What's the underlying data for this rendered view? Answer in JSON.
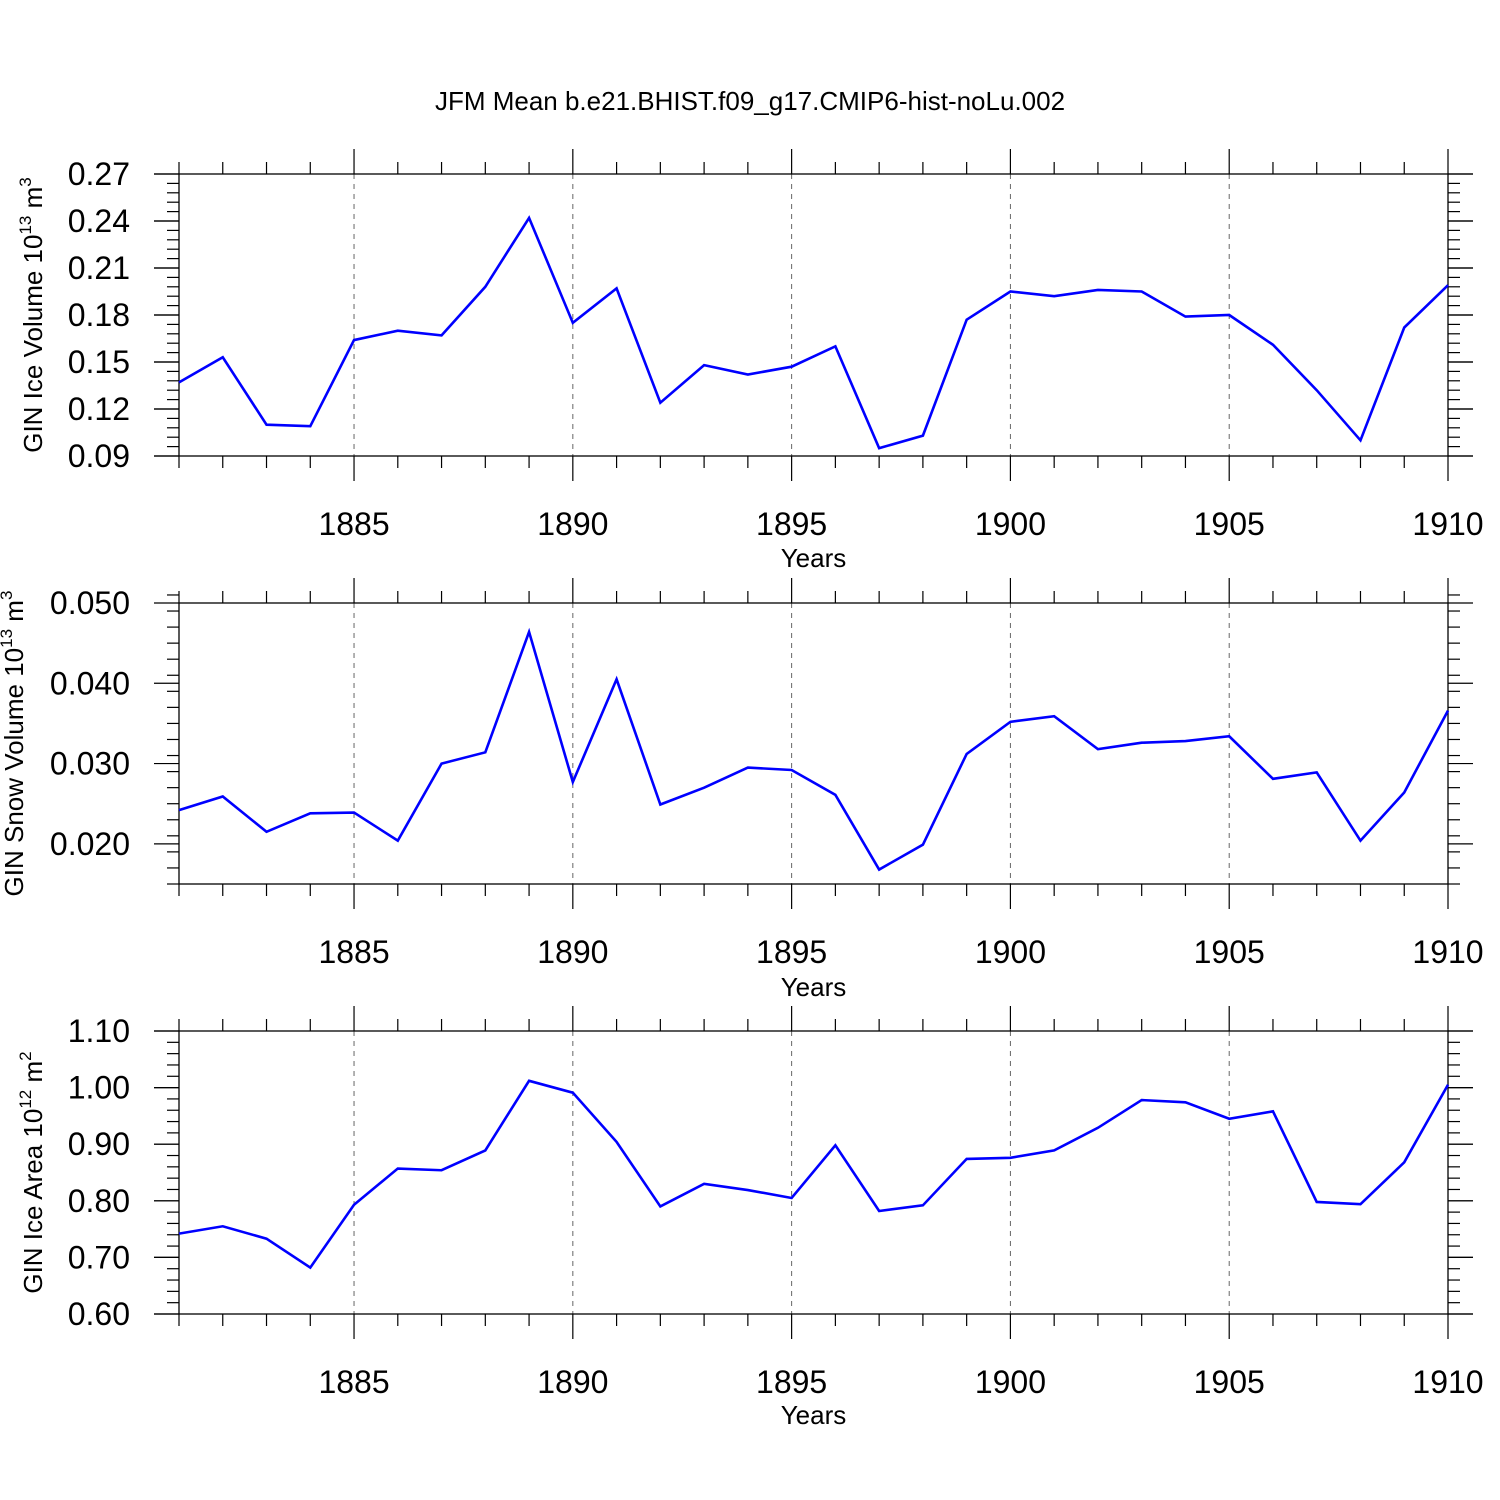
{
  "figure_title": "JFM Mean b.e21.BHIST.f09_g17.CMIP6-hist-noLu.002",
  "chart_data": [
    {
      "type": "line",
      "ylabel_base": "GIN Ice Volume 10",
      "ylabel_exp": "13",
      "ylabel_unit": "m",
      "ylabel_unit_exp": "3",
      "xlabel": "Years",
      "xlim": [
        1881,
        1910
      ],
      "ylim": [
        0.09,
        0.27
      ],
      "yticks": [
        0.09,
        0.12,
        0.15,
        0.18,
        0.21,
        0.24,
        0.27
      ],
      "ytick_labels": [
        "0.09",
        "0.12",
        "0.15",
        "0.18",
        "0.21",
        "0.24",
        "0.27"
      ],
      "y_minor_step": 0.006,
      "xticks": [
        1885,
        1890,
        1895,
        1900,
        1905,
        1910
      ],
      "xtick_labels": [
        "1885",
        "1890",
        "1895",
        "1900",
        "1905",
        "1910"
      ],
      "grid": "vertical-dashed",
      "series": [
        {
          "name": "GIN Ice Volume",
          "color": "#0000ff",
          "x": [
            1881,
            1882,
            1883,
            1884,
            1885,
            1886,
            1887,
            1888,
            1889,
            1890,
            1891,
            1892,
            1893,
            1894,
            1895,
            1896,
            1897,
            1898,
            1899,
            1900,
            1901,
            1902,
            1903,
            1904,
            1905,
            1906,
            1907,
            1908,
            1909,
            1910
          ],
          "values": [
            0.137,
            0.153,
            0.11,
            0.109,
            0.164,
            0.17,
            0.167,
            0.198,
            0.242,
            0.175,
            0.197,
            0.124,
            0.148,
            0.142,
            0.147,
            0.16,
            0.095,
            0.103,
            0.177,
            0.195,
            0.192,
            0.196,
            0.195,
            0.179,
            0.18,
            0.161,
            0.132,
            0.1,
            0.172,
            0.199
          ]
        }
      ]
    },
    {
      "type": "line",
      "ylabel_base": "GIN Snow Volume 10",
      "ylabel_exp": "13",
      "ylabel_unit": "m",
      "ylabel_unit_exp": "3",
      "xlabel": "Years",
      "xlim": [
        1881,
        1910
      ],
      "ylim": [
        0.015,
        0.05
      ],
      "yticks": [
        0.02,
        0.03,
        0.04,
        0.05
      ],
      "ytick_labels": [
        "0.020",
        "0.030",
        "0.040",
        "0.050"
      ],
      "y_minor_step": 0.002,
      "xticks": [
        1885,
        1890,
        1895,
        1900,
        1905,
        1910
      ],
      "xtick_labels": [
        "1885",
        "1890",
        "1895",
        "1900",
        "1905",
        "1910"
      ],
      "grid": "vertical-dashed",
      "series": [
        {
          "name": "GIN Snow Volume",
          "color": "#0000ff",
          "x": [
            1881,
            1882,
            1883,
            1884,
            1885,
            1886,
            1887,
            1888,
            1889,
            1890,
            1891,
            1892,
            1893,
            1894,
            1895,
            1896,
            1897,
            1898,
            1899,
            1900,
            1901,
            1902,
            1903,
            1904,
            1905,
            1906,
            1907,
            1908,
            1909,
            1910
          ],
          "values": [
            0.0242,
            0.0259,
            0.0215,
            0.0238,
            0.0239,
            0.0204,
            0.03,
            0.0314,
            0.0464,
            0.0277,
            0.0405,
            0.0249,
            0.027,
            0.0295,
            0.0292,
            0.0261,
            0.0168,
            0.0199,
            0.0312,
            0.0352,
            0.0359,
            0.0318,
            0.0326,
            0.0328,
            0.0334,
            0.0281,
            0.0289,
            0.0204,
            0.0264,
            0.0366
          ]
        }
      ]
    },
    {
      "type": "line",
      "ylabel_base": "GIN Ice Area 10",
      "ylabel_exp": "12",
      "ylabel_unit": "m",
      "ylabel_unit_exp": "2",
      "xlabel": "Years",
      "xlim": [
        1881,
        1910
      ],
      "ylim": [
        0.6,
        1.1
      ],
      "yticks": [
        0.6,
        0.7,
        0.8,
        0.9,
        1.0,
        1.1
      ],
      "ytick_labels": [
        "0.60",
        "0.70",
        "0.80",
        "0.90",
        "1.00",
        "1.10"
      ],
      "y_minor_step": 0.02,
      "xticks": [
        1885,
        1890,
        1895,
        1900,
        1905,
        1910
      ],
      "xtick_labels": [
        "1885",
        "1890",
        "1895",
        "1900",
        "1905",
        "1910"
      ],
      "grid": "vertical-dashed",
      "series": [
        {
          "name": "GIN Ice Area",
          "color": "#0000ff",
          "x": [
            1881,
            1882,
            1883,
            1884,
            1885,
            1886,
            1887,
            1888,
            1889,
            1890,
            1891,
            1892,
            1893,
            1894,
            1895,
            1896,
            1897,
            1898,
            1899,
            1900,
            1901,
            1902,
            1903,
            1904,
            1905,
            1906,
            1907,
            1908,
            1909,
            1910
          ],
          "values": [
            0.742,
            0.755,
            0.733,
            0.682,
            0.793,
            0.857,
            0.854,
            0.889,
            1.012,
            0.991,
            0.904,
            0.79,
            0.83,
            0.819,
            0.805,
            0.898,
            0.782,
            0.792,
            0.874,
            0.876,
            0.889,
            0.929,
            0.978,
            0.974,
            0.945,
            0.958,
            0.798,
            0.794,
            0.868,
            1.005
          ]
        }
      ]
    }
  ]
}
